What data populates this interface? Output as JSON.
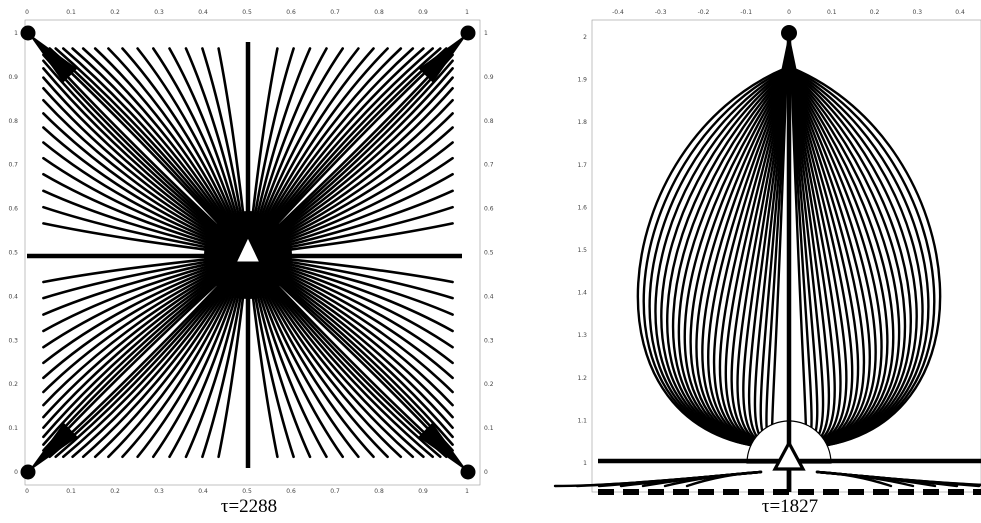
{
  "left_panel": {
    "x_ticks": [
      "0",
      "0.1",
      "0.2",
      "0.3",
      "0.4",
      "0.5",
      "0.6",
      "0.7",
      "0.8",
      "0.9",
      "1"
    ],
    "y_ticks": [
      "0",
      "0.1",
      "0.2",
      "0.3",
      "0.4",
      "0.5",
      "0.6",
      "0.7",
      "0.8",
      "0.9",
      "1"
    ],
    "caption": "τ=2288"
  },
  "right_panel": {
    "x_ticks": [
      "-0.4",
      "-0.3",
      "-0.2",
      "-0.1",
      "0",
      "0.1",
      "0.2",
      "0.3",
      "0.4"
    ],
    "y_ticks": [
      "1",
      "1.1",
      "1.2",
      "1.3",
      "1.4",
      "1.5",
      "1.6",
      "1.7",
      "1.8",
      "1.9",
      "2"
    ],
    "caption": "τ=1827"
  },
  "colors": {
    "lines": "#000000",
    "background": "#ffffff",
    "marker_fill": "#ffffff"
  },
  "icons": {
    "center": "triangle-marker",
    "corners": "circle-node"
  }
}
